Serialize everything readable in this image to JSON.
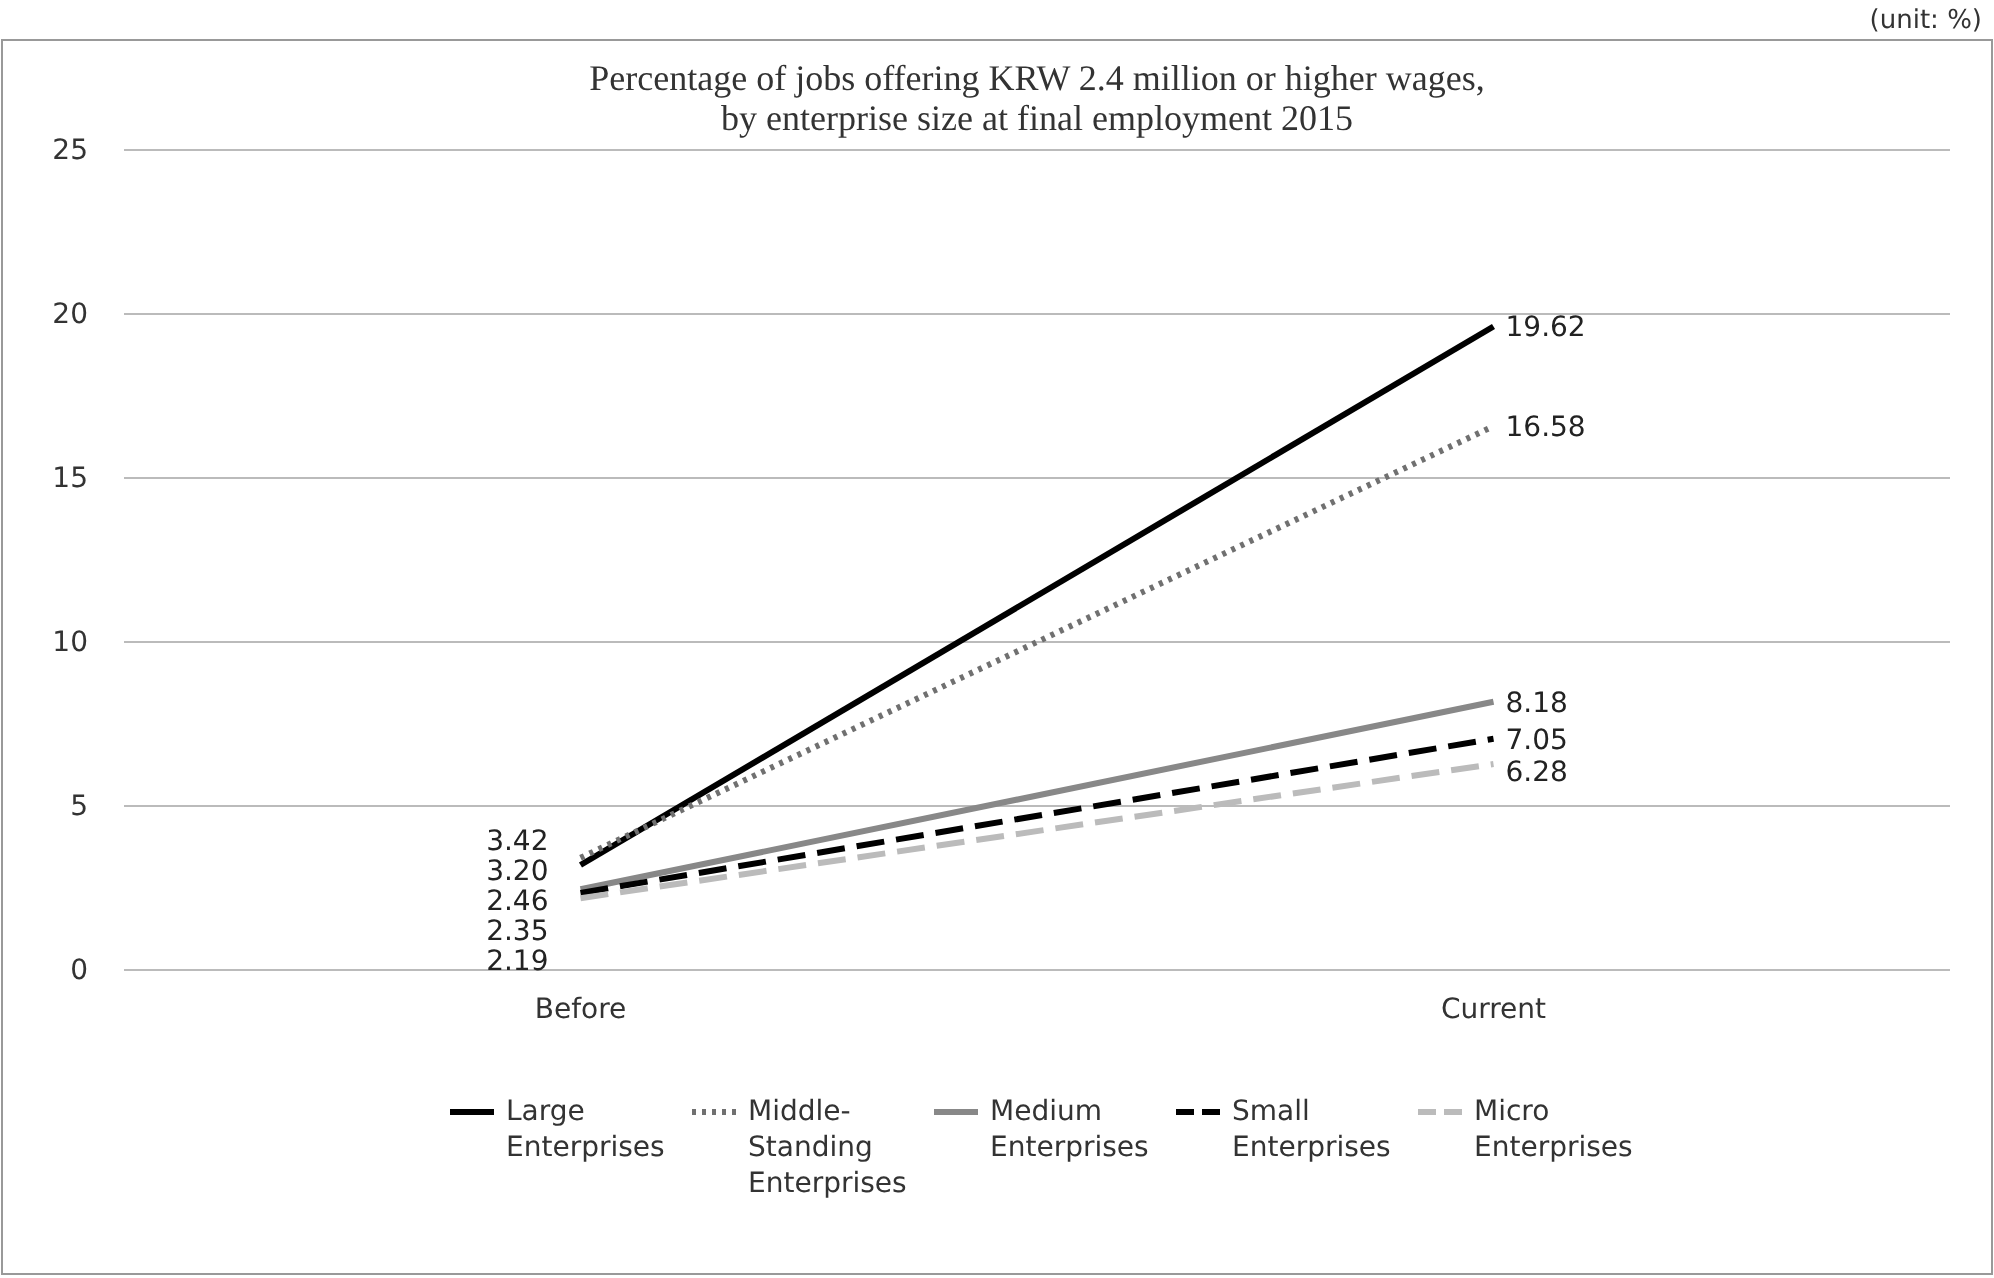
{
  "chart_data": {
    "type": "line",
    "title": "Percentage of jobs offering KRW 2.4 million or higher wages,\nby enterprise size at final employment 2015",
    "categories": [
      "Before",
      "Current"
    ],
    "series": [
      {
        "name": "Large Enterprises",
        "color": "#000000",
        "line_style": "solid",
        "values": [
          3.2,
          19.62
        ],
        "value_labels": [
          "3.20",
          "19.62"
        ]
      },
      {
        "name": "Middle-Standing Enterprises",
        "color": "#707070",
        "line_style": "dotted",
        "values": [
          3.42,
          16.58
        ],
        "value_labels": [
          "3.42",
          "16.58"
        ]
      },
      {
        "name": "Medium Enterprises",
        "color": "#888888",
        "line_style": "solid",
        "values": [
          2.46,
          8.18
        ],
        "value_labels": [
          "2.46",
          "8.18"
        ]
      },
      {
        "name": "Small Enterprises",
        "color": "#000000",
        "line_style": "dashed",
        "values": [
          2.35,
          7.05
        ],
        "value_labels": [
          "2.35",
          "7.05"
        ]
      },
      {
        "name": "Micro Enterprises",
        "color": "#bbbbbb",
        "line_style": "dashed",
        "values": [
          2.19,
          6.28
        ],
        "value_labels": [
          "2.19",
          "6.28"
        ]
      }
    ],
    "ylim": [
      0,
      25
    ],
    "yticks": [
      0,
      5,
      10,
      15,
      20,
      25
    ],
    "grid": "y",
    "legend": "bottom",
    "marker": "none",
    "annotations": [
      "(unit: %)"
    ]
  }
}
